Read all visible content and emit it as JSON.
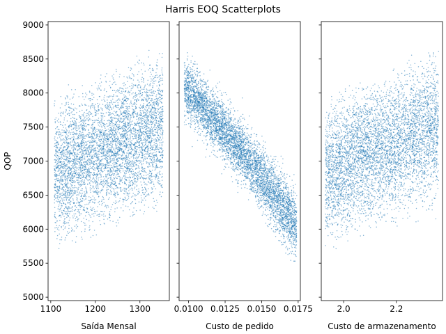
{
  "title": "Harris EOQ Scatterplots",
  "chart_data": [
    {
      "type": "scatter",
      "xlabel": "Saída Mensal",
      "ylabel": "QOP",
      "xlim": [
        1094,
        1366
      ],
      "ylim": [
        4950,
        9050
      ],
      "xticks": [
        1100,
        1200,
        1300
      ],
      "xtick_labels": [
        "1100",
        "1200",
        "1300"
      ],
      "yticks": [
        5000,
        5500,
        6000,
        6500,
        7000,
        7500,
        8000,
        8500,
        9000
      ],
      "ytick_labels": [
        "5000",
        "5500",
        "6000",
        "6500",
        "7000",
        "7500",
        "8000",
        "8500",
        "9000"
      ],
      "shape": "uniform-increasing",
      "x_range": [
        1108,
        1352
      ],
      "y_band_at_xmin": [
        5550,
        8100
      ],
      "y_band_at_xmax": [
        6100,
        8900
      ],
      "color": "#1f77b4"
    },
    {
      "type": "scatter",
      "xlabel": "Custo de pedido",
      "ylabel": "",
      "xlim": [
        0.00935,
        0.01765
      ],
      "ylim": [
        4950,
        9050
      ],
      "xticks": [
        0.01,
        0.0125,
        0.015,
        0.0175
      ],
      "xtick_labels": [
        "0.0100",
        "0.0125",
        "0.0150",
        "0.0175"
      ],
      "yticks": [
        5000,
        5500,
        6000,
        6500,
        7000,
        7500,
        8000,
        8500,
        9000
      ],
      "shape": "decreasing-curve",
      "x_range": [
        0.0097,
        0.0174
      ],
      "color": "#1f77b4"
    },
    {
      "type": "scatter",
      "xlabel": "Custo de armazenamento",
      "ylabel": "",
      "xlim": [
        1.915,
        2.375
      ],
      "ylim": [
        4950,
        9050
      ],
      "xticks": [
        2.0,
        2.2
      ],
      "xtick_labels": [
        "2.0",
        "2.2"
      ],
      "yticks": [
        5000,
        5500,
        6000,
        6500,
        7000,
        7500,
        8000,
        8500,
        9000
      ],
      "shape": "uniform-increasing",
      "x_range": [
        1.93,
        2.36
      ],
      "y_band_at_xmin": [
        5550,
        8100
      ],
      "y_band_at_xmax": [
        6100,
        8900
      ],
      "color": "#1f77b4"
    }
  ]
}
